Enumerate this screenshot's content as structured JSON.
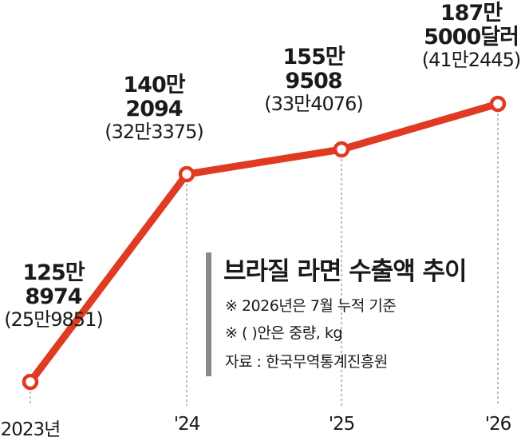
{
  "chart_data": {
    "type": "line",
    "title": "브라질 라면 수출액 추이",
    "notes": [
      "※ 2026년은 7월 누적 기준",
      "※ (  )안은 중량, kg"
    ],
    "source": "자료 : 한국무역통계진흥원",
    "categories": [
      "2023년",
      "'24",
      "'25",
      "'26"
    ],
    "series": [
      {
        "values": [
          1258974,
          1402094,
          1559508,
          1875000
        ],
        "weights_kg": [
          259851,
          323375,
          334076,
          412445
        ]
      }
    ],
    "labels": [
      {
        "line1": "125만",
        "line2": "8974",
        "line3": "(25만9851)"
      },
      {
        "line1": "140만",
        "line2": "2094",
        "line3": "(32만3375)"
      },
      {
        "line1": "155만",
        "line2": "9508",
        "line3": "(33만4076)"
      },
      {
        "line1": "187만",
        "line2": "5000달러",
        "line3": "(41만2445)"
      }
    ],
    "colors": {
      "line": "#e03a22",
      "marker_fill": "#ffffff",
      "guide": "#9a9a9a",
      "legend_bar": "#8a8a8a"
    }
  }
}
